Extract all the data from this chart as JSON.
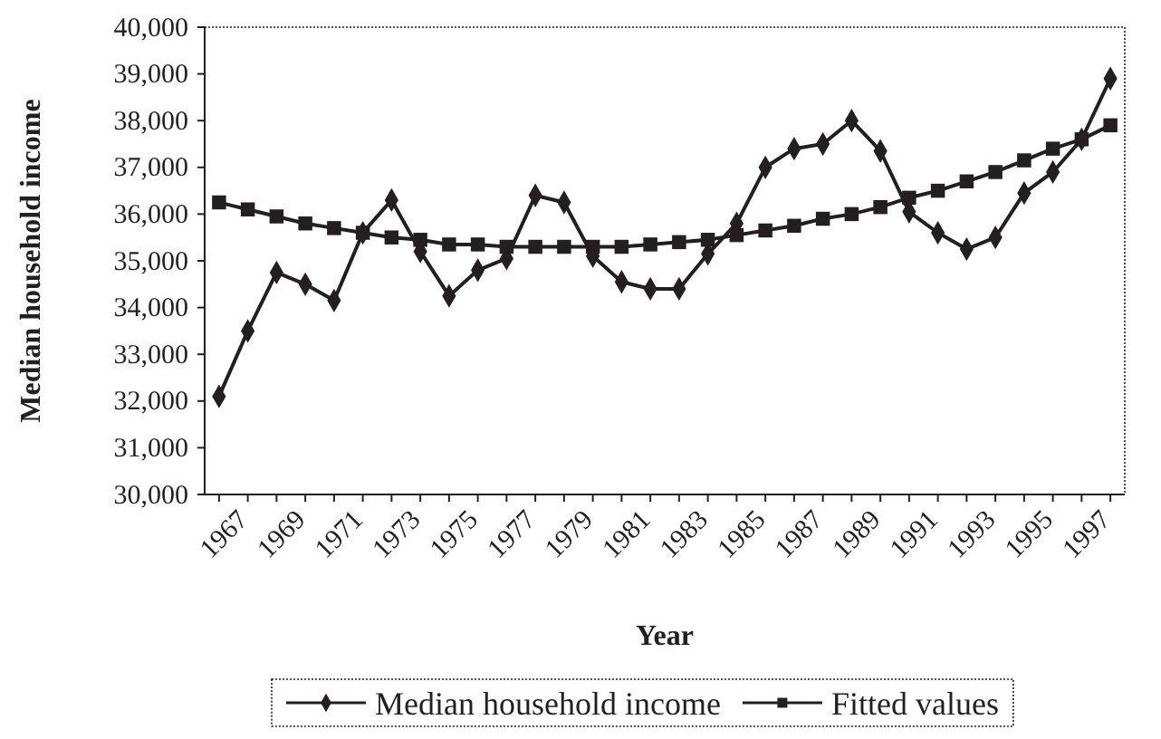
{
  "chart_data": {
    "type": "line",
    "xlabel": "Year",
    "ylabel": "Median household income",
    "categories": [
      "1967",
      null,
      "1969",
      null,
      "1971",
      null,
      "1973",
      null,
      "1975",
      null,
      "1977",
      null,
      "1979",
      null,
      "1981",
      null,
      "1983",
      null,
      "1985",
      null,
      "1987",
      null,
      "1989",
      null,
      "1991",
      null,
      "1993",
      null,
      "1995",
      null,
      "1997",
      null
    ],
    "series": [
      {
        "name": "Median household income",
        "color": "#231f20",
        "marker": "diamond",
        "values": [
          32100,
          33500,
          34750,
          34500,
          34150,
          35600,
          36300,
          35200,
          34250,
          34800,
          35050,
          36400,
          36250,
          35100,
          34550,
          34400,
          34400,
          35150,
          35800,
          37000,
          37400,
          37500,
          38000,
          37350,
          36050,
          35600,
          35250,
          35500,
          36450,
          36900,
          37600,
          38900
        ]
      },
      {
        "name": "Fitted values",
        "color": "#231f20",
        "marker": "square",
        "values": [
          36250,
          36100,
          35950,
          35800,
          35700,
          35600,
          35500,
          35450,
          35350,
          35350,
          35300,
          35300,
          35300,
          35300,
          35300,
          35350,
          35400,
          35450,
          35550,
          35650,
          35750,
          35900,
          36000,
          36150,
          36350,
          36500,
          36700,
          36900,
          37150,
          37400,
          37600,
          37900
        ]
      }
    ],
    "ylim": [
      30000,
      40000
    ],
    "yticks": [
      {
        "value": 30000,
        "label": "30,000"
      },
      {
        "value": 31000,
        "label": "31,000"
      },
      {
        "value": 32000,
        "label": "32,000"
      },
      {
        "value": 33000,
        "label": "33,000"
      },
      {
        "value": 34000,
        "label": "34,000"
      },
      {
        "value": 35000,
        "label": "35,000"
      },
      {
        "value": 36000,
        "label": "36,000"
      },
      {
        "value": 37000,
        "label": "37,000"
      },
      {
        "value": 38000,
        "label": "38,000"
      },
      {
        "value": 39000,
        "label": "39,000"
      },
      {
        "value": 40000,
        "label": "40,000"
      }
    ],
    "grid": false,
    "legend": "bottom"
  }
}
